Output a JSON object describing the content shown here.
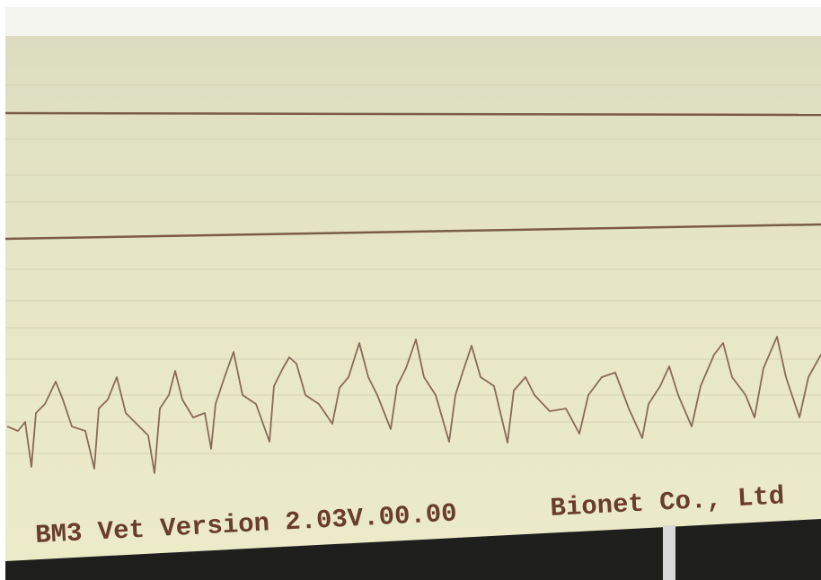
{
  "footer": {
    "device": "BM3 Vet Version 2.03V.00.00",
    "company": "Bionet Co., Ltd"
  }
}
